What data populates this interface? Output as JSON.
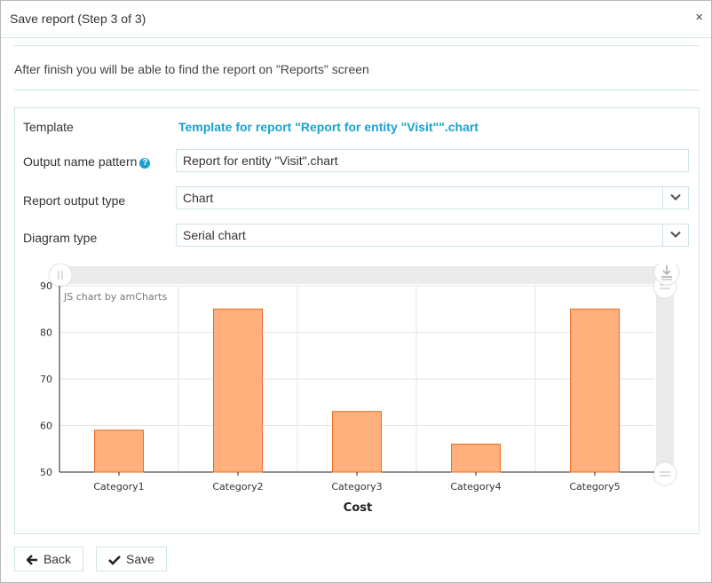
{
  "dialog": {
    "title": "Save report (Step 3 of 3)",
    "close": "×",
    "info": "After finish you will be able to find the report on \"Reports\" screen"
  },
  "form": {
    "template_label": "Template",
    "template_value": "Template for report \"Report for entity \"Visit\"\".chart",
    "output_name_label": "Output name pattern",
    "help": "?",
    "output_name_value": "Report for entity \"Visit\".chart",
    "output_type_label": "Report output type",
    "output_type_value": "Chart",
    "diagram_type_label": "Diagram type",
    "diagram_type_value": "Serial chart"
  },
  "chart_data": {
    "type": "bar",
    "categories": [
      "Category1",
      "Category2",
      "Category3",
      "Category4",
      "Category5"
    ],
    "values": [
      59,
      85,
      63,
      56,
      85
    ],
    "xlabel": "Cost",
    "ylabel": "",
    "ylim": [
      50,
      90
    ],
    "yticks": [
      50,
      60,
      70,
      80,
      90
    ],
    "credit": "JS chart by amCharts",
    "grid": true,
    "bar_fill": "#ffb07d",
    "bar_stroke": "#e56c1e"
  },
  "buttons": {
    "back": "Back",
    "save": "Save"
  }
}
